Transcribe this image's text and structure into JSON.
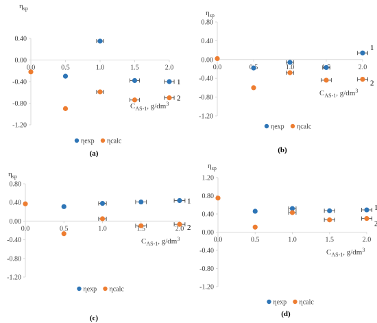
{
  "colors": {
    "exp": "#2E75B6",
    "calc": "#ED7D31",
    "axis": "#D9D9D9",
    "text": "#404040"
  },
  "chart_data": [
    {
      "type": "scatter",
      "panel_label": "(a)",
      "ylabel": "η",
      "ylabel_sub": "sp",
      "xlabel": "C",
      "xlabel_sub": "AS-1",
      "xlabel_unit": ", g/dm",
      "xlabel_sup": "3",
      "xlim": [
        0,
        2.0
      ],
      "ylim": [
        -1.2,
        0.4
      ],
      "xticks": [
        "0.0",
        "0.5",
        "1.0",
        "1.5",
        "2.0"
      ],
      "yticks": [
        "0.40",
        "0.00",
        "-0.40",
        "-0.80",
        "-1.20"
      ],
      "legend": [
        "ηexp",
        "ηcalc"
      ],
      "curve_labels": [
        "1",
        "2"
      ],
      "series": [
        {
          "name": "ηexp",
          "points": [
            [
              0.5,
              -0.3
            ],
            [
              1.0,
              0.35
            ],
            [
              1.5,
              -0.38
            ],
            [
              2.0,
              -0.4
            ]
          ],
          "xerr": [
            0,
            0.05,
            0.07,
            0.07
          ]
        },
        {
          "name": "ηcalc",
          "points": [
            [
              0.0,
              -0.22
            ],
            [
              0.5,
              -0.9
            ],
            [
              1.0,
              -0.59
            ],
            [
              1.5,
              -0.74
            ],
            [
              2.0,
              -0.7
            ]
          ],
          "xerr": [
            0,
            0,
            0.05,
            0.07,
            0.07
          ]
        }
      ]
    },
    {
      "type": "scatter",
      "panel_label": "(b)",
      "ylabel": "η",
      "ylabel_sub": "sp",
      "xlabel": "C",
      "xlabel_sub": "AS-1",
      "xlabel_unit": ", g/dm",
      "xlabel_sup": "3",
      "xlim": [
        0,
        2.0
      ],
      "ylim": [
        -1.2,
        0.8
      ],
      "xticks": [
        "0.0",
        "0.5",
        "1.0",
        "1.5",
        "2.0"
      ],
      "yticks": [
        "0.80",
        "0.40",
        "0.00",
        "-0.40",
        "-0.80",
        "-1.20"
      ],
      "legend": [
        "ηexp",
        "ηcalc"
      ],
      "curve_labels": [
        "1",
        "2"
      ],
      "series": [
        {
          "name": "ηexp",
          "points": [
            [
              0.5,
              -0.18
            ],
            [
              1.0,
              -0.06
            ],
            [
              1.5,
              -0.17
            ],
            [
              2.0,
              0.14
            ]
          ],
          "xerr": [
            0,
            0.05,
            0.05,
            0.07
          ]
        },
        {
          "name": "ηcalc",
          "points": [
            [
              0.0,
              0.02
            ],
            [
              0.5,
              -0.6
            ],
            [
              1.0,
              -0.28
            ],
            [
              1.5,
              -0.44
            ],
            [
              2.0,
              -0.42
            ]
          ],
          "xerr": [
            0,
            0,
            0.05,
            0.07,
            0.07
          ]
        }
      ]
    },
    {
      "type": "scatter",
      "panel_label": "(c)",
      "ylabel": "η",
      "ylabel_sub": "sp",
      "xlabel": "C",
      "xlabel_sub": "AS-1",
      "xlabel_unit": ", g/dm",
      "xlabel_sup": "3",
      "xlim": [
        0,
        2.0
      ],
      "ylim": [
        -1.2,
        0.8
      ],
      "xticks": [
        "0.0",
        "0.5",
        "1.0",
        "1.5",
        "2.0"
      ],
      "yticks": [
        "0.80",
        "0.40",
        "0.00",
        "-0.40",
        "-0.80",
        "-1.20"
      ],
      "legend": [
        "ηexp",
        "ηcalc"
      ],
      "curve_labels": [
        "1",
        "2"
      ],
      "series": [
        {
          "name": "ηexp",
          "points": [
            [
              0.5,
              0.31
            ],
            [
              1.0,
              0.38
            ],
            [
              1.5,
              0.41
            ],
            [
              2.0,
              0.44
            ]
          ],
          "xerr": [
            0,
            0.05,
            0.07,
            0.07
          ]
        },
        {
          "name": "ηcalc",
          "points": [
            [
              0.0,
              0.37
            ],
            [
              0.5,
              -0.27
            ],
            [
              1.0,
              0.05
            ],
            [
              1.5,
              -0.1
            ],
            [
              2.0,
              -0.07
            ]
          ],
          "xerr": [
            0,
            0,
            0.05,
            0.07,
            0.07
          ]
        }
      ]
    },
    {
      "type": "scatter",
      "panel_label": "(d)",
      "ylabel": "η",
      "ylabel_sub": "sp",
      "xlabel": "C",
      "xlabel_sub": "AS-1",
      "xlabel_unit": ", g/dm",
      "xlabel_sup": "3",
      "xlim": [
        0,
        2.0
      ],
      "ylim": [
        -1.2,
        1.2
      ],
      "xticks": [
        "0.0",
        "0.5",
        "1.0",
        "1.5",
        "2.0"
      ],
      "yticks": [
        "1.20",
        "0.80",
        "0.40",
        "0.00",
        "-0.40",
        "-0.80",
        "-1.20"
      ],
      "legend": [
        "ηexp",
        "ηcalc"
      ],
      "curve_labels": [
        "1",
        "2"
      ],
      "series": [
        {
          "name": "ηexp",
          "points": [
            [
              0.5,
              0.46
            ],
            [
              1.0,
              0.52
            ],
            [
              1.5,
              0.47
            ],
            [
              2.0,
              0.49
            ]
          ],
          "xerr": [
            0,
            0.05,
            0.07,
            0.07
          ]
        },
        {
          "name": "ηcalc",
          "points": [
            [
              0.0,
              0.75
            ],
            [
              0.5,
              0.11
            ],
            [
              1.0,
              0.43
            ],
            [
              1.5,
              0.27
            ],
            [
              2.0,
              0.3
            ]
          ],
          "xerr": [
            0,
            0,
            0.05,
            0.07,
            0.07
          ]
        }
      ]
    }
  ]
}
